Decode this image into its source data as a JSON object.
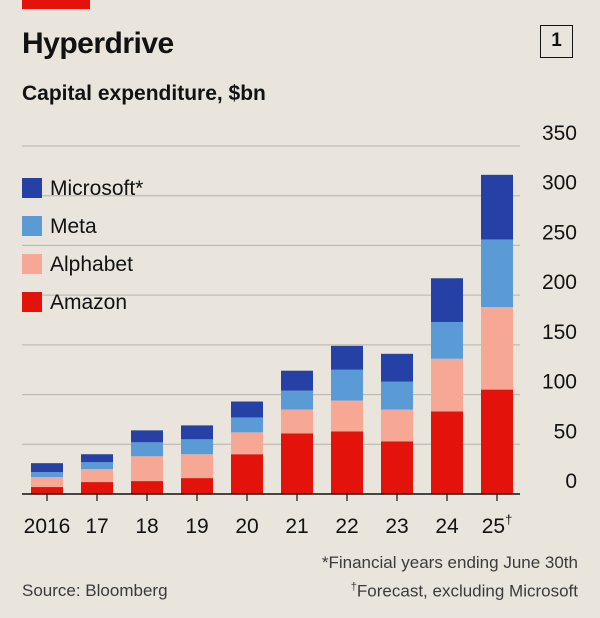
{
  "header": {
    "title": "Hyperdrive",
    "chart_number": "1",
    "subtitle": "Capital expenditure, $bn"
  },
  "footnotes": {
    "note1": "*Financial years ending June 30th",
    "note2_mark": "†",
    "note2": "Forecast, excluding Microsoft",
    "source": "Source: Bloomberg"
  },
  "colors": {
    "Amazon": "#e3120b",
    "Alphabet": "#f6a894",
    "Meta": "#5b9bd5",
    "Microsoft": "#2541a6",
    "gridline": "#b7b2ab",
    "axis": "#121212",
    "brand_red": "#e3120b"
  },
  "chart_data": {
    "type": "bar",
    "stacked": true,
    "title": "Hyperdrive",
    "subtitle": "Capital expenditure, $bn",
    "categories": [
      "2016",
      "17",
      "18",
      "19",
      "20",
      "21",
      "22",
      "23",
      "24",
      "25†"
    ],
    "series": [
      {
        "name": "Amazon",
        "values": [
          7,
          12,
          13,
          16,
          40,
          61,
          63,
          53,
          83,
          105
        ]
      },
      {
        "name": "Alphabet",
        "values": [
          10,
          13,
          25,
          24,
          22,
          24,
          31,
          32,
          53,
          83
        ]
      },
      {
        "name": "Meta",
        "values": [
          5,
          7,
          14,
          15,
          15,
          19,
          31,
          28,
          37,
          68
        ]
      },
      {
        "name": "Microsoft",
        "values": [
          9,
          8,
          12,
          14,
          16,
          20,
          24,
          28,
          44,
          65
        ]
      }
    ],
    "legend": [
      "Microsoft*",
      "Meta",
      "Alphabet",
      "Amazon"
    ],
    "legend_position": "top-left",
    "yticks": [
      0,
      50,
      100,
      150,
      200,
      250,
      300,
      350
    ],
    "ylim": [
      0,
      350
    ],
    "yaxis_side": "right",
    "grid": true,
    "xlabel": "",
    "ylabel": ""
  }
}
